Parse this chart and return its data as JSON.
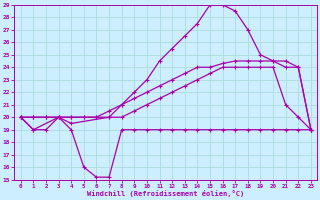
{
  "xlabel": "Windchill (Refroidissement éolien,°C)",
  "bg_color": "#cceeff",
  "grid_color": "#aadddd",
  "line_color": "#aa00aa",
  "xlim": [
    -0.5,
    23.5
  ],
  "ylim": [
    15,
    29
  ],
  "yticks": [
    15,
    16,
    17,
    18,
    19,
    20,
    21,
    22,
    23,
    24,
    25,
    26,
    27,
    28,
    29
  ],
  "xticks": [
    0,
    1,
    2,
    3,
    4,
    5,
    6,
    7,
    8,
    9,
    10,
    11,
    12,
    13,
    14,
    15,
    16,
    17,
    18,
    19,
    20,
    21,
    22,
    23
  ],
  "series": [
    {
      "x": [
        0,
        1,
        3,
        4,
        7,
        8,
        9,
        10,
        11,
        12,
        13,
        14,
        15,
        16,
        17,
        18,
        19,
        20,
        21,
        22,
        23
      ],
      "y": [
        20,
        19,
        20,
        19.5,
        20,
        21,
        22,
        23,
        24.5,
        25.5,
        26.5,
        27.5,
        29,
        29,
        28.5,
        27,
        25,
        24.5,
        24,
        24,
        19
      ]
    },
    {
      "x": [
        0,
        1,
        2,
        3,
        4,
        5,
        6,
        7,
        8,
        9,
        10,
        11,
        12,
        13,
        14,
        15,
        16,
        17,
        18,
        19,
        20,
        21,
        22,
        23
      ],
      "y": [
        20,
        20,
        20,
        20,
        20,
        20,
        20,
        20.5,
        21,
        21.5,
        22,
        22.5,
        23,
        23.5,
        24,
        24,
        24.3,
        24.5,
        24.5,
        24.5,
        24.5,
        24.5,
        24,
        19
      ]
    },
    {
      "x": [
        0,
        1,
        2,
        3,
        4,
        5,
        6,
        7,
        8,
        9,
        10,
        11,
        12,
        13,
        14,
        15,
        16,
        17,
        18,
        19,
        20,
        21,
        22,
        23
      ],
      "y": [
        20,
        20,
        20,
        20,
        20,
        20,
        20,
        20,
        20,
        20.5,
        21,
        21.5,
        22,
        22.5,
        23,
        23.5,
        24,
        24,
        24,
        24,
        24,
        21,
        20,
        19
      ]
    },
    {
      "x": [
        0,
        1,
        2,
        3,
        4,
        5,
        6,
        7,
        8,
        9,
        10,
        11,
        12,
        13,
        14,
        15,
        16,
        17,
        18,
        19,
        20,
        21,
        22,
        23
      ],
      "y": [
        20,
        19,
        19,
        20,
        19,
        16,
        15.2,
        15.2,
        19,
        19,
        19,
        19,
        19,
        19,
        19,
        19,
        19,
        19,
        19,
        19,
        19,
        19,
        19,
        19
      ]
    }
  ]
}
